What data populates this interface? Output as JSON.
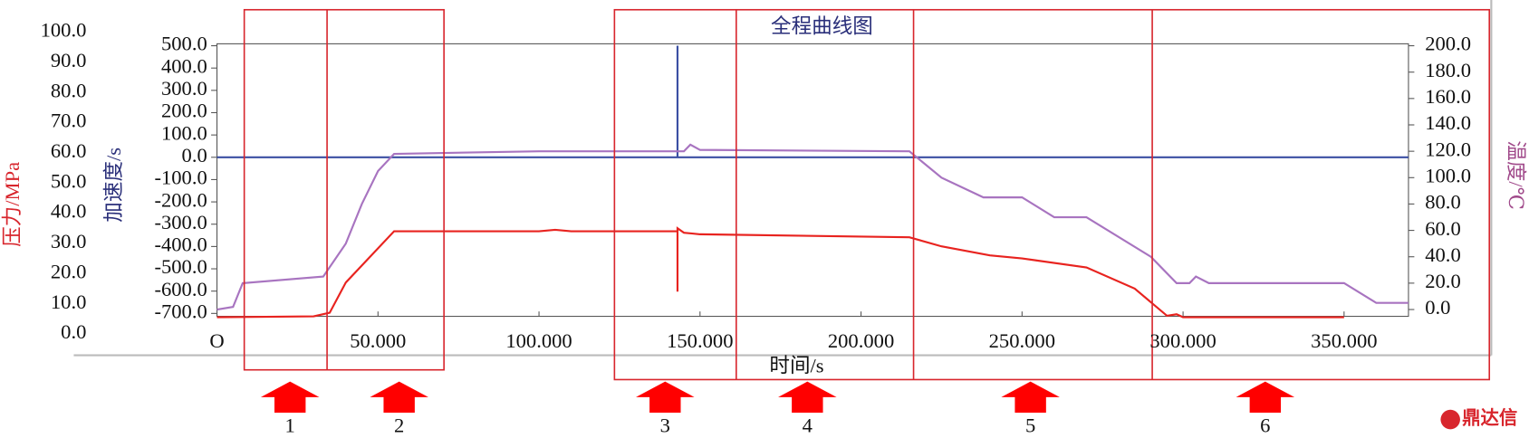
{
  "chart_data": {
    "type": "line",
    "title": "全程曲线图",
    "x_label": "时间/s",
    "y_label": "压力/MPa",
    "y3_label": "加速度/s",
    "y2_label": "温度/℃",
    "xlim": [
      0,
      370
    ],
    "xticks": [
      {
        "value": 0,
        "label": "O"
      },
      {
        "value": 50,
        "label": "50.000"
      },
      {
        "value": 100,
        "label": "100.000"
      },
      {
        "value": 150,
        "label": "150.000"
      },
      {
        "value": 200,
        "label": "200.000"
      },
      {
        "value": 250,
        "label": "250.000"
      },
      {
        "value": 300,
        "label": "300.000"
      },
      {
        "value": 350,
        "label": "350.000"
      }
    ],
    "ylim": [
      0,
      100
    ],
    "yticks": [
      {
        "value": 0,
        "label": "0.0"
      },
      {
        "value": 10,
        "label": "10.0"
      },
      {
        "value": 20,
        "label": "20.0"
      },
      {
        "value": 30,
        "label": "30.0"
      },
      {
        "value": 40,
        "label": "40.0"
      },
      {
        "value": 50,
        "label": "50.0"
      },
      {
        "value": 60,
        "label": "60.0"
      },
      {
        "value": 70,
        "label": "70.0"
      },
      {
        "value": 80,
        "label": "80.0"
      },
      {
        "value": 90,
        "label": "90.0"
      },
      {
        "value": 100,
        "label": "100.0"
      }
    ],
    "y3lim": [
      -700,
      500
    ],
    "y3ticks": [
      {
        "value": -700,
        "label": "-700.0"
      },
      {
        "value": -600,
        "label": "-600.0"
      },
      {
        "value": -500,
        "label": "-500.0"
      },
      {
        "value": -400,
        "label": "-400.0"
      },
      {
        "value": -300,
        "label": "-300.0"
      },
      {
        "value": -200,
        "label": "-200.0"
      },
      {
        "value": -100,
        "label": "-100.0"
      },
      {
        "value": 0,
        "label": "0.0"
      },
      {
        "value": 100,
        "label": "100.0"
      },
      {
        "value": 200,
        "label": "200.0"
      },
      {
        "value": 300,
        "label": "300.0"
      },
      {
        "value": 400,
        "label": "400.0"
      },
      {
        "value": 500,
        "label": "500.0"
      }
    ],
    "y2lim": [
      0,
      200
    ],
    "y2ticks": [
      {
        "value": 0,
        "label": "0.0"
      },
      {
        "value": 20,
        "label": "20.0"
      },
      {
        "value": 40,
        "label": "40.0"
      },
      {
        "value": 60,
        "label": "60.0"
      },
      {
        "value": 80,
        "label": "80.0"
      },
      {
        "value": 100,
        "label": "100.0"
      },
      {
        "value": 120,
        "label": "120.0"
      },
      {
        "value": 140,
        "label": "140.0"
      },
      {
        "value": 160,
        "label": "160.0"
      },
      {
        "value": 180,
        "label": "180.0"
      },
      {
        "value": 200,
        "label": "200.0"
      }
    ],
    "grid": false,
    "series": [
      {
        "name": "压力",
        "color": "#e8231f",
        "axis": "y",
        "x": [
          0,
          30,
          35,
          40,
          55,
          100,
          105,
          110,
          143,
          143,
          143,
          145,
          150,
          215,
          225,
          240,
          250,
          270,
          285,
          295,
          298,
          300,
          350
        ],
        "values": [
          5.5,
          5.8,
          7,
          17,
          34,
          34,
          34.5,
          34,
          34,
          14,
          35,
          33.5,
          33,
          32,
          29,
          26,
          25,
          22,
          15,
          6,
          6.5,
          5.5,
          5.5
        ]
      },
      {
        "name": "加速度",
        "color": "#3b4fa3",
        "axis": "y3",
        "x": [
          0,
          143,
          143,
          143,
          370
        ],
        "values": [
          0,
          0,
          500,
          0,
          0
        ]
      },
      {
        "name": "温度",
        "color": "#a874c0",
        "axis": "y2",
        "x": [
          0,
          5,
          8,
          33,
          40,
          45,
          50,
          55,
          100,
          143,
          145,
          147,
          150,
          215,
          225,
          238,
          250,
          260,
          270,
          290,
          298,
          302,
          304,
          308,
          350,
          360,
          370
        ],
        "values": [
          0,
          2,
          20,
          25,
          50,
          80,
          105,
          118,
          120,
          120,
          120,
          125,
          121,
          120,
          100,
          85,
          85,
          70,
          70,
          40,
          20,
          20,
          25,
          20,
          20,
          5,
          5
        ]
      }
    ],
    "stages": [
      "1",
      "2",
      "3",
      "4",
      "5",
      "6"
    ],
    "watermark": "鼎达信"
  }
}
